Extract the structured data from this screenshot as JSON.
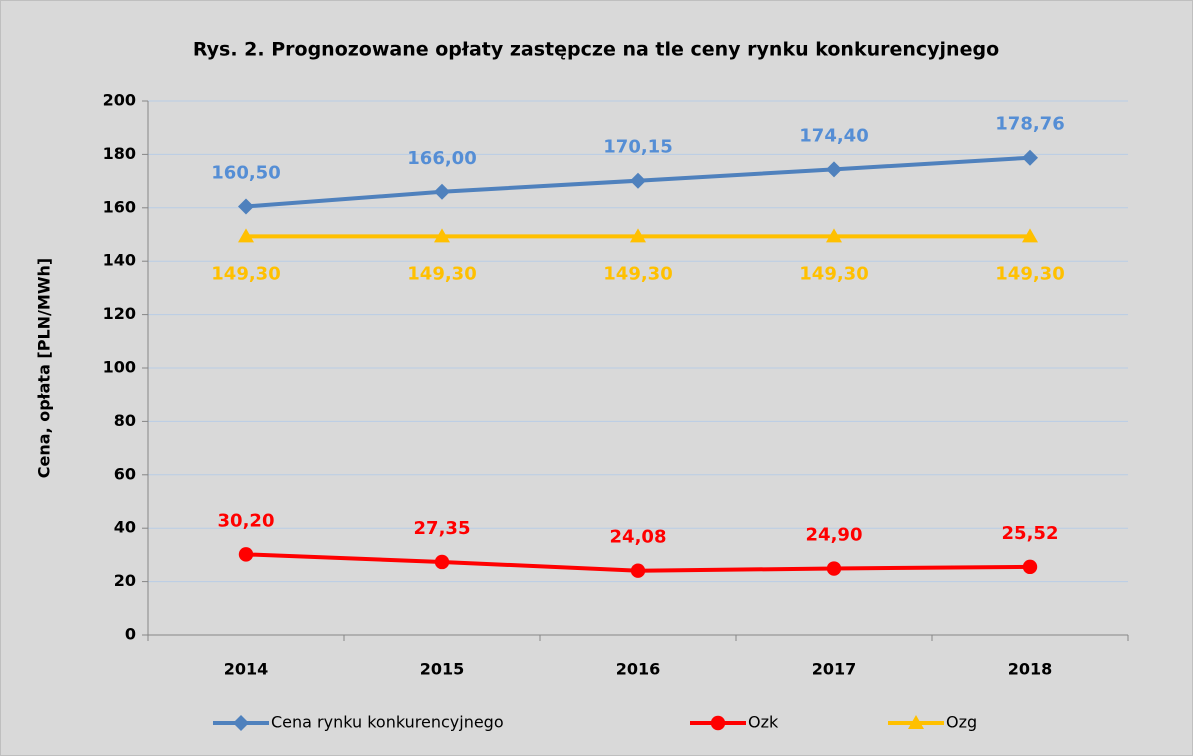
{
  "chart_data": {
    "type": "line",
    "title": "Rys. 2. Prognozowane opłaty zastępcze na tle ceny rynku konkurencyjnego",
    "y_label": "Cena, opłata [PLN/MWh]",
    "categories": [
      "2014",
      "2015",
      "2016",
      "2017",
      "2018"
    ],
    "series": [
      {
        "name": "Cena rynku konkurencyjnego",
        "color": "#4f81bd",
        "label_color": "#558ed5",
        "marker": "diamond",
        "label_position": "above",
        "values": [
          160.5,
          166.0,
          170.15,
          174.4,
          178.76
        ],
        "value_labels": [
          "160,50",
          "166,00",
          "170,15",
          "174,40",
          "178,76"
        ]
      },
      {
        "name": "Ozk",
        "color": "#ff0000",
        "label_color": "#ff0000",
        "marker": "circle",
        "label_position": "above",
        "values": [
          30.2,
          27.35,
          24.08,
          24.9,
          25.52
        ],
        "value_labels": [
          "30,20",
          "27,35",
          "24,08",
          "24,90",
          "25,52"
        ]
      },
      {
        "name": "Ozg",
        "color": "#ffc000",
        "label_color": "#ffc000",
        "marker": "triangle",
        "label_position": "below",
        "values": [
          149.3,
          149.3,
          149.3,
          149.3,
          149.3
        ],
        "value_labels": [
          "149,30",
          "149,30",
          "149,30",
          "149,30",
          "149,30"
        ]
      }
    ],
    "ylim": [
      0,
      200
    ],
    "yticks": [
      0,
      20,
      40,
      60,
      80,
      100,
      120,
      140,
      160,
      180,
      200
    ],
    "grid": true,
    "legend": "bottom"
  }
}
